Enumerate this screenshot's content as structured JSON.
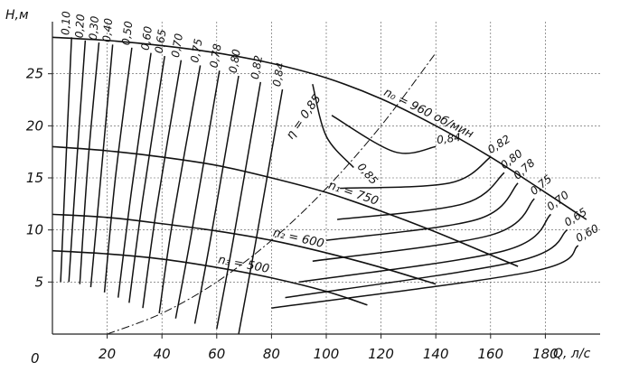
{
  "chart_data": {
    "type": "line",
    "xlabel": "Q, л/с",
    "ylabel": "H,м",
    "origin_label": "0",
    "xlim": [
      0,
      200
    ],
    "ylim": [
      0,
      30
    ],
    "x_ticks": [
      20,
      40,
      60,
      80,
      100,
      120,
      140,
      160,
      180
    ],
    "y_ticks": [
      5,
      10,
      15,
      20,
      25
    ],
    "grid": "dashed",
    "speed_curves": [
      {
        "name": "n0=960 об/мин",
        "label": "n₀ = 960 об/мин",
        "x": [
          0,
          20,
          40,
          60,
          80,
          100,
          120,
          140,
          160,
          180,
          195
        ],
        "y": [
          28.5,
          28.2,
          27.7,
          27.0,
          26.0,
          24.6,
          22.6,
          20.0,
          17.0,
          13.6,
          11.0
        ]
      },
      {
        "name": "n1=750",
        "label": "n₁ = 750",
        "x": [
          0,
          20,
          40,
          60,
          80,
          100,
          120,
          140,
          160,
          170
        ],
        "y": [
          18.0,
          17.6,
          17.0,
          16.2,
          15.0,
          13.6,
          11.8,
          9.8,
          7.6,
          6.5
        ]
      },
      {
        "name": "n2=600",
        "label": "n₂ = 600",
        "x": [
          0,
          20,
          40,
          60,
          80,
          100,
          120,
          140
        ],
        "y": [
          11.5,
          11.2,
          10.6,
          9.9,
          9.0,
          7.8,
          6.4,
          4.8
        ]
      },
      {
        "name": "n3=500",
        "label": "n₃ = 500",
        "x": [
          0,
          20,
          40,
          60,
          80,
          100,
          115
        ],
        "y": [
          8.0,
          7.7,
          7.2,
          6.4,
          5.4,
          4.1,
          2.8
        ]
      }
    ],
    "efficiency_label": "η = 0,85",
    "efficiency_contours": [
      {
        "label": "0,10",
        "x": [
          3,
          5,
          7
        ],
        "y": [
          5,
          17,
          28.5
        ]
      },
      {
        "label": "0,20",
        "x": [
          6,
          9,
          12
        ],
        "y": [
          5,
          17,
          28.2
        ]
      },
      {
        "label": "0,30",
        "x": [
          10,
          13,
          17
        ],
        "y": [
          4.8,
          16.5,
          28.0
        ]
      },
      {
        "label": "0,40",
        "x": [
          14,
          18,
          22
        ],
        "y": [
          4.5,
          16,
          27.8
        ]
      },
      {
        "label": "0,50",
        "x": [
          19,
          23,
          29
        ],
        "y": [
          4,
          15,
          27.5
        ]
      },
      {
        "label": "0,60",
        "x": [
          24,
          29,
          36
        ],
        "y": [
          3.5,
          14,
          27.0
        ]
      },
      {
        "label": "0,65",
        "x": [
          28,
          33,
          41
        ],
        "y": [
          3,
          13,
          26.7
        ]
      },
      {
        "label": "0,70",
        "x": [
          33,
          38,
          47
        ],
        "y": [
          2.5,
          12,
          26.3
        ]
      },
      {
        "label": "0,75",
        "x": [
          39,
          44,
          54
        ],
        "y": [
          2,
          11,
          25.8
        ]
      },
      {
        "label": "0,78",
        "x": [
          45,
          51,
          61
        ],
        "y": [
          1.5,
          10,
          25.3
        ]
      },
      {
        "label": "0,80",
        "x": [
          52,
          58,
          68
        ],
        "y": [
          1,
          9.5,
          24.8
        ]
      },
      {
        "label": "0,82",
        "x": [
          60,
          66,
          76
        ],
        "y": [
          0.5,
          9,
          24.2
        ]
      },
      {
        "label": "0,84",
        "x": [
          68,
          74,
          84
        ],
        "y": [
          0,
          8.5,
          23.5
        ]
      },
      {
        "label": "0,85",
        "x": [
          95,
          100,
          110
        ],
        "y": [
          24,
          19,
          16
        ]
      },
      {
        "label": "0,84",
        "x": [
          102,
          125,
          140
        ],
        "y": [
          21,
          17.5,
          18
        ]
      },
      {
        "label": "0,82",
        "x": [
          105,
          145,
          160
        ],
        "y": [
          14,
          14.5,
          17
        ]
      },
      {
        "label": "0,80",
        "x": [
          104,
          150,
          165
        ],
        "y": [
          11,
          12.5,
          15.5
        ]
      },
      {
        "label": "0,78",
        "x": [
          100,
          155,
          170
        ],
        "y": [
          9,
          11,
          14.5
        ]
      },
      {
        "label": "0,75",
        "x": [
          95,
          160,
          176
        ],
        "y": [
          7,
          9.5,
          13
        ]
      },
      {
        "label": "0,70",
        "x": [
          90,
          165,
          182
        ],
        "y": [
          5,
          8,
          11.5
        ]
      },
      {
        "label": "0,65",
        "x": [
          85,
          170,
          188
        ],
        "y": [
          3.5,
          7,
          10
        ]
      },
      {
        "label": "0,60",
        "x": [
          80,
          175,
          192
        ],
        "y": [
          2.5,
          6,
          8.5
        ]
      }
    ],
    "system_curve": {
      "x": [
        20,
        40,
        60,
        80,
        100,
        120,
        140
      ],
      "y": [
        0,
        2,
        5,
        9,
        14,
        20,
        27
      ]
    }
  }
}
